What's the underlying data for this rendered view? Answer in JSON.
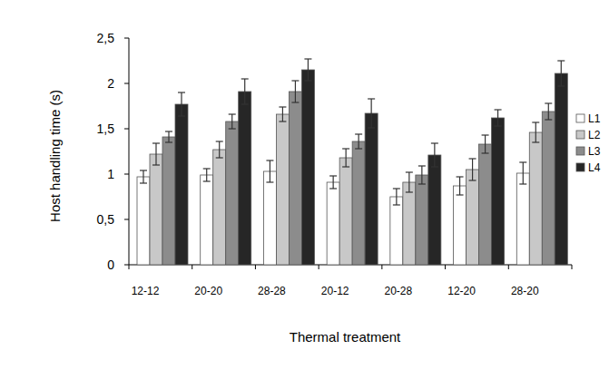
{
  "chart_data": {
    "type": "bar",
    "x_label": "Thermal treatment",
    "y_label": "Host handling time (s)",
    "categories": [
      "12-12",
      "20-20",
      "28-28",
      "20-12",
      "20-28",
      "12-20",
      "28-20"
    ],
    "series": [
      {
        "name": "L1",
        "color": "#ffffff",
        "values": [
          0.97,
          0.99,
          1.03,
          0.91,
          0.75,
          0.87,
          1.01
        ],
        "errors": [
          0.07,
          0.07,
          0.12,
          0.07,
          0.09,
          0.1,
          0.12
        ]
      },
      {
        "name": "L2",
        "color": "#c8c8c8",
        "values": [
          1.22,
          1.27,
          1.66,
          1.18,
          0.91,
          1.05,
          1.46
        ],
        "errors": [
          0.12,
          0.09,
          0.08,
          0.1,
          0.11,
          0.12,
          0.11
        ]
      },
      {
        "name": "L3",
        "color": "#8c8c8c",
        "values": [
          1.41,
          1.58,
          1.91,
          1.36,
          0.99,
          1.33,
          1.69
        ],
        "errors": [
          0.06,
          0.08,
          0.12,
          0.08,
          0.1,
          0.1,
          0.09
        ]
      },
      {
        "name": "L4",
        "color": "#262626",
        "values": [
          1.77,
          1.91,
          2.15,
          1.67,
          1.21,
          1.62,
          2.11
        ],
        "errors": [
          0.13,
          0.14,
          0.12,
          0.16,
          0.13,
          0.09,
          0.14
        ]
      }
    ],
    "ylim": [
      0,
      2.5
    ],
    "yticks": [
      0,
      {
        "value": 0.5,
        "label": "0,5"
      },
      1,
      {
        "value": 1.5,
        "label": "1,5"
      },
      2,
      {
        "value": 2.5,
        "label": "2,5"
      }
    ],
    "grid": false,
    "legend": "right"
  }
}
